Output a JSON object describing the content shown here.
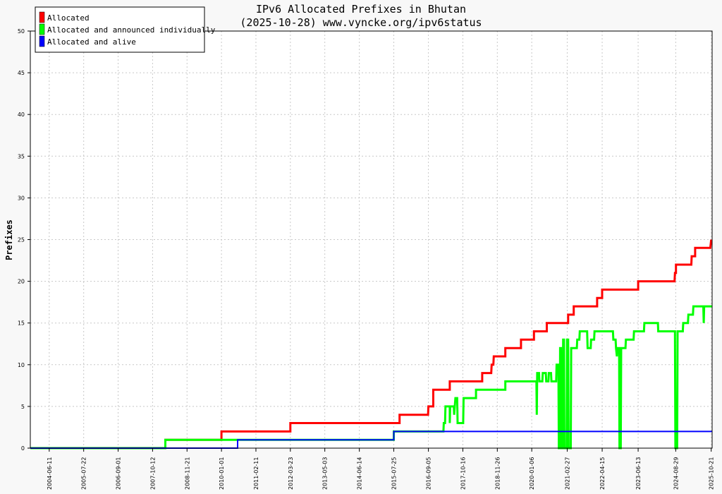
{
  "chart_data": {
    "type": "line",
    "title": "IPv6 Allocated Prefixes in Bhutan",
    "subtitle": "(2025-10-28) www.vyncke.org/ipv6status",
    "ylabel": "Prefixes",
    "xlabel": "",
    "xlim": [
      "2003-11-01",
      "2025-11-01"
    ],
    "ylim": [
      0,
      50
    ],
    "yticks": [
      0,
      5,
      10,
      15,
      20,
      25,
      30,
      35,
      40,
      45,
      50
    ],
    "xticks": [
      "2004-06-11",
      "2005-07-22",
      "2006-09-01",
      "2007-10-12",
      "2008-11-21",
      "2010-01-01",
      "2011-02-11",
      "2012-03-23",
      "2013-05-03",
      "2014-06-14",
      "2015-07-25",
      "2016-09-05",
      "2017-10-16",
      "2018-11-26",
      "2020-01-06",
      "2021-02-27",
      "2022-04-15",
      "2023-06-13",
      "2024-08-29",
      "2025-10-21"
    ],
    "grid": true,
    "legend_position": "top-left",
    "series": [
      {
        "name": "Allocated",
        "color": "#ff0000",
        "points": [
          [
            "2003-11-01",
            0
          ],
          [
            "2008-03-10",
            0
          ],
          [
            "2008-03-10",
            1
          ],
          [
            "2010-01-01",
            1
          ],
          [
            "2010-01-01",
            2
          ],
          [
            "2012-03-23",
            2
          ],
          [
            "2012-03-23",
            3
          ],
          [
            "2015-10-01",
            3
          ],
          [
            "2015-10-01",
            4
          ],
          [
            "2016-09-01",
            4
          ],
          [
            "2016-09-05",
            5
          ],
          [
            "2016-11-01",
            5
          ],
          [
            "2016-11-01",
            7
          ],
          [
            "2017-05-15",
            7
          ],
          [
            "2017-05-15",
            8
          ],
          [
            "2018-06-01",
            8
          ],
          [
            "2018-06-01",
            9
          ],
          [
            "2018-09-15",
            9
          ],
          [
            "2018-09-20",
            10
          ],
          [
            "2018-10-10",
            10
          ],
          [
            "2018-10-15",
            11
          ],
          [
            "2019-03-01",
            11
          ],
          [
            "2019-03-01",
            12
          ],
          [
            "2019-09-01",
            12
          ],
          [
            "2019-09-01",
            13
          ],
          [
            "2020-02-01",
            13
          ],
          [
            "2020-02-01",
            14
          ],
          [
            "2020-07-01",
            14
          ],
          [
            "2020-07-01",
            15
          ],
          [
            "2021-03-10",
            15
          ],
          [
            "2021-03-10",
            16
          ],
          [
            "2021-05-15",
            16
          ],
          [
            "2021-05-15",
            17
          ],
          [
            "2022-02-15",
            17
          ],
          [
            "2022-02-15",
            18
          ],
          [
            "2022-04-15",
            18
          ],
          [
            "2022-04-15",
            19
          ],
          [
            "2023-06-13",
            19
          ],
          [
            "2023-06-13",
            20
          ],
          [
            "2024-08-15",
            20
          ],
          [
            "2024-08-20",
            21
          ],
          [
            "2024-09-01",
            21
          ],
          [
            "2024-09-01",
            22
          ],
          [
            "2025-03-01",
            22
          ],
          [
            "2025-03-05",
            23
          ],
          [
            "2025-04-15",
            23
          ],
          [
            "2025-04-15",
            24
          ],
          [
            "2025-10-10",
            24
          ],
          [
            "2025-10-21",
            25
          ]
        ]
      },
      {
        "name": "Allocated and announced individually",
        "color": "#00ff00",
        "points": [
          [
            "2003-11-01",
            0
          ],
          [
            "2008-03-10",
            0
          ],
          [
            "2008-03-10",
            1
          ],
          [
            "2015-07-25",
            1
          ],
          [
            "2015-07-25",
            2
          ],
          [
            "2017-03-01",
            2
          ],
          [
            "2017-03-05",
            3
          ],
          [
            "2017-03-20",
            3
          ],
          [
            "2017-03-25",
            5
          ],
          [
            "2017-05-15",
            5
          ],
          [
            "2017-05-15",
            3
          ],
          [
            "2017-05-20",
            5
          ],
          [
            "2017-07-01",
            5
          ],
          [
            "2017-07-05",
            4
          ],
          [
            "2017-07-20",
            6
          ],
          [
            "2017-08-10",
            6
          ],
          [
            "2017-08-15",
            3
          ],
          [
            "2017-10-20",
            3
          ],
          [
            "2017-10-25",
            6
          ],
          [
            "2018-03-20",
            6
          ],
          [
            "2018-03-20",
            7
          ],
          [
            "2019-03-01",
            7
          ],
          [
            "2019-03-01",
            8
          ],
          [
            "2020-03-01",
            8
          ],
          [
            "2020-03-05",
            4
          ],
          [
            "2020-03-10",
            9
          ],
          [
            "2020-04-01",
            9
          ],
          [
            "2020-04-05",
            8
          ],
          [
            "2020-05-10",
            8
          ],
          [
            "2020-05-15",
            9
          ],
          [
            "2020-06-20",
            9
          ],
          [
            "2020-06-25",
            8
          ],
          [
            "2020-07-20",
            8
          ],
          [
            "2020-07-25",
            9
          ],
          [
            "2020-08-20",
            9
          ],
          [
            "2020-08-25",
            8
          ],
          [
            "2020-10-20",
            8
          ],
          [
            "2020-10-25",
            10
          ],
          [
            "2020-11-15",
            10
          ],
          [
            "2020-11-20",
            0
          ],
          [
            "2020-12-01",
            0
          ],
          [
            "2020-12-05",
            12
          ],
          [
            "2020-12-15",
            12
          ],
          [
            "2020-12-20",
            0
          ],
          [
            "2021-01-05",
            0
          ],
          [
            "2021-01-10",
            13
          ],
          [
            "2021-01-20",
            13
          ],
          [
            "2021-01-25",
            0
          ],
          [
            "2021-02-20",
            0
          ],
          [
            "2021-02-25",
            13
          ],
          [
            "2021-03-10",
            13
          ],
          [
            "2021-03-15",
            0
          ],
          [
            "2021-04-10",
            0
          ],
          [
            "2021-04-15",
            12
          ],
          [
            "2021-06-20",
            12
          ],
          [
            "2021-06-25",
            13
          ],
          [
            "2021-07-20",
            13
          ],
          [
            "2021-07-25",
            14
          ],
          [
            "2021-10-20",
            14
          ],
          [
            "2021-10-25",
            12
          ],
          [
            "2021-12-01",
            12
          ],
          [
            "2021-12-05",
            13
          ],
          [
            "2022-01-10",
            13
          ],
          [
            "2022-01-15",
            14
          ],
          [
            "2022-08-20",
            14
          ],
          [
            "2022-08-25",
            13
          ],
          [
            "2022-09-20",
            13
          ],
          [
            "2022-09-25",
            12
          ],
          [
            "2022-10-05",
            11
          ],
          [
            "2022-10-10",
            12
          ],
          [
            "2022-11-01",
            12
          ],
          [
            "2022-11-05",
            0
          ],
          [
            "2022-11-20",
            0
          ],
          [
            "2022-11-25",
            12
          ],
          [
            "2023-01-15",
            12
          ],
          [
            "2023-01-20",
            13
          ],
          [
            "2023-04-20",
            13
          ],
          [
            "2023-04-25",
            14
          ],
          [
            "2023-08-20",
            14
          ],
          [
            "2023-08-25",
            15
          ],
          [
            "2024-02-01",
            15
          ],
          [
            "2024-02-05",
            14
          ],
          [
            "2024-08-20",
            14
          ],
          [
            "2024-08-25",
            0
          ],
          [
            "2024-09-15",
            0
          ],
          [
            "2024-09-20",
            14
          ],
          [
            "2024-11-20",
            14
          ],
          [
            "2024-11-25",
            15
          ],
          [
            "2025-01-20",
            15
          ],
          [
            "2025-01-25",
            16
          ],
          [
            "2025-03-20",
            16
          ],
          [
            "2025-03-25",
            17
          ],
          [
            "2025-07-20",
            17
          ],
          [
            "2025-07-25",
            15
          ],
          [
            "2025-07-30",
            17
          ],
          [
            "2025-10-28",
            17
          ]
        ]
      },
      {
        "name": "Allocated and alive",
        "color": "#0000ff",
        "points": [
          [
            "2003-11-01",
            0
          ],
          [
            "2010-07-10",
            0
          ],
          [
            "2010-07-10",
            1
          ],
          [
            "2015-07-25",
            1
          ],
          [
            "2015-07-25",
            2
          ],
          [
            "2025-10-28",
            2
          ]
        ]
      }
    ]
  }
}
